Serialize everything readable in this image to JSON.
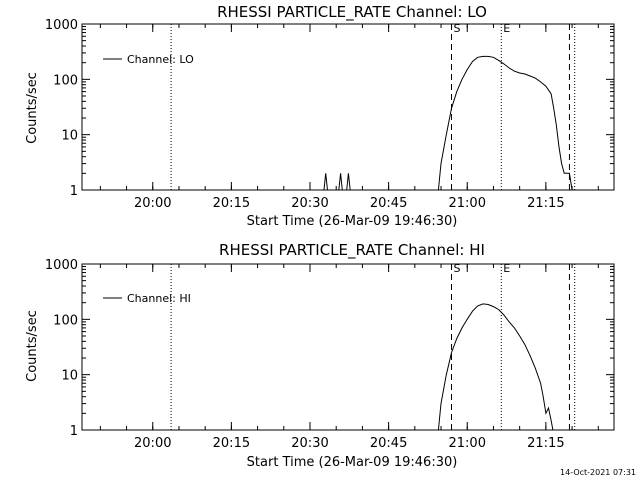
{
  "footer": {
    "generated": "14-Oct-2021 07:31"
  },
  "chart_data": [
    {
      "type": "line",
      "title": "RHESSI PARTICLE_RATE Channel: LO",
      "xlabel": "Start Time (26-Mar-09 19:46:30)",
      "ylabel": "Counts/sec",
      "yscale": "log",
      "ylim": [
        1,
        1000
      ],
      "xlim": [
        "19:46:30",
        "21:28:00"
      ],
      "yticks": [
        "1",
        "10",
        "100",
        "1000"
      ],
      "xticks": [
        "20:00",
        "20:15",
        "20:30",
        "20:45",
        "21:00",
        "21:15"
      ],
      "legend": {
        "position": "top-left",
        "label": "Channel: LO"
      },
      "markers": [
        {
          "time": "20:03:30",
          "label": "",
          "style": "dotted"
        },
        {
          "time": "20:57:00",
          "label": "S",
          "style": "dashed"
        },
        {
          "time": "21:06:30",
          "label": "E",
          "style": "dotted"
        },
        {
          "time": "21:19:30",
          "label": "",
          "style": "dashed"
        },
        {
          "time": "21:20:30",
          "label": "",
          "style": "dotted"
        }
      ],
      "series": [
        {
          "name": "Channel: LO",
          "points": [
            [
              "19:46:30",
              1
            ],
            [
              "20:32:40",
              1
            ],
            [
              "20:33:00",
              2
            ],
            [
              "20:33:20",
              1
            ],
            [
              "20:35:30",
              1
            ],
            [
              "20:35:50",
              2
            ],
            [
              "20:36:10",
              1
            ],
            [
              "20:37:00",
              1
            ],
            [
              "20:37:20",
              2
            ],
            [
              "20:37:40",
              1
            ],
            [
              "20:54:30",
              1
            ],
            [
              "20:55:00",
              3
            ],
            [
              "20:56:00",
              10
            ],
            [
              "20:57:00",
              30
            ],
            [
              "20:58:00",
              60
            ],
            [
              "20:59:00",
              100
            ],
            [
              "21:00:00",
              150
            ],
            [
              "21:01:00",
              210
            ],
            [
              "21:02:00",
              250
            ],
            [
              "21:03:00",
              260
            ],
            [
              "21:04:00",
              260
            ],
            [
              "21:05:00",
              250
            ],
            [
              "21:06:00",
              220
            ],
            [
              "21:07:00",
              190
            ],
            [
              "21:08:00",
              160
            ],
            [
              "21:09:00",
              140
            ],
            [
              "21:10:00",
              130
            ],
            [
              "21:11:00",
              125
            ],
            [
              "21:12:00",
              115
            ],
            [
              "21:13:00",
              105
            ],
            [
              "21:14:00",
              90
            ],
            [
              "21:15:00",
              75
            ],
            [
              "21:16:00",
              55
            ],
            [
              "21:16:30",
              30
            ],
            [
              "21:17:00",
              15
            ],
            [
              "21:17:30",
              6
            ],
            [
              "21:18:00",
              3
            ],
            [
              "21:18:30",
              2
            ],
            [
              "21:19:30",
              2
            ],
            [
              "21:20:00",
              1
            ]
          ]
        }
      ]
    },
    {
      "type": "line",
      "title": "RHESSI PARTICLE_RATE Channel: HI",
      "xlabel": "Start Time (26-Mar-09 19:46:30)",
      "ylabel": "Counts/sec",
      "yscale": "log",
      "ylim": [
        1,
        1000
      ],
      "xlim": [
        "19:46:30",
        "21:28:00"
      ],
      "yticks": [
        "1",
        "10",
        "100",
        "1000"
      ],
      "xticks": [
        "20:00",
        "20:15",
        "20:30",
        "20:45",
        "21:00",
        "21:15"
      ],
      "legend": {
        "position": "top-left",
        "label": "Channel: HI"
      },
      "markers": [
        {
          "time": "20:03:30",
          "label": "",
          "style": "dotted"
        },
        {
          "time": "20:57:00",
          "label": "S",
          "style": "dashed"
        },
        {
          "time": "21:06:30",
          "label": "E",
          "style": "dotted"
        },
        {
          "time": "21:19:30",
          "label": "",
          "style": "dashed"
        },
        {
          "time": "21:20:30",
          "label": "",
          "style": "dotted"
        }
      ],
      "series": [
        {
          "name": "Channel: HI",
          "points": [
            [
              "19:46:30",
              1
            ],
            [
              "20:54:30",
              1
            ],
            [
              "20:55:00",
              3
            ],
            [
              "20:56:00",
              10
            ],
            [
              "20:57:00",
              25
            ],
            [
              "20:58:00",
              45
            ],
            [
              "20:59:00",
              70
            ],
            [
              "21:00:00",
              100
            ],
            [
              "21:01:00",
              140
            ],
            [
              "21:02:00",
              175
            ],
            [
              "21:03:00",
              190
            ],
            [
              "21:04:00",
              185
            ],
            [
              "21:05:00",
              170
            ],
            [
              "21:06:00",
              150
            ],
            [
              "21:07:00",
              120
            ],
            [
              "21:08:00",
              90
            ],
            [
              "21:09:00",
              70
            ],
            [
              "21:10:00",
              50
            ],
            [
              "21:11:00",
              35
            ],
            [
              "21:12:00",
              22
            ],
            [
              "21:13:00",
              13
            ],
            [
              "21:14:00",
              7
            ],
            [
              "21:14:30",
              4
            ],
            [
              "21:15:00",
              2
            ],
            [
              "21:15:30",
              2.5
            ],
            [
              "21:16:00",
              1.5
            ],
            [
              "21:16:20",
              1
            ]
          ]
        }
      ]
    }
  ]
}
